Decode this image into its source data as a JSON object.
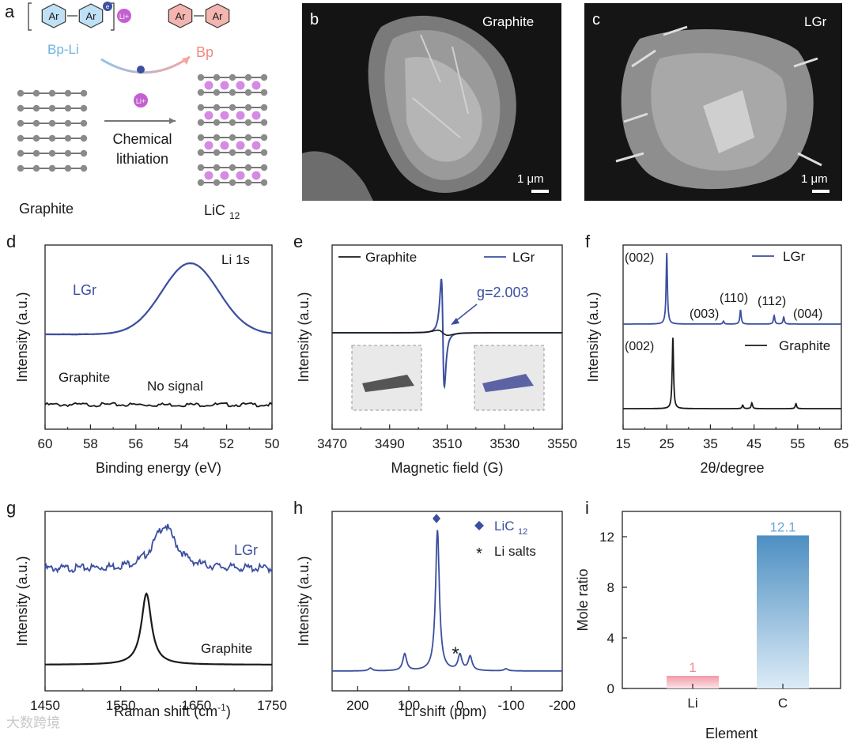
{
  "colors": {
    "blue": "#3b4fa0",
    "black": "#1a1a1a",
    "purple": "#c45fd0",
    "grayball": "#8a8a8a",
    "pinkbar": "#f2aeb6",
    "bluebar": "#5b9bc9",
    "arrowblue": "#8fc3e8",
    "arrowpink": "#f4a6a0"
  },
  "panels": {
    "a": {
      "letter": "a",
      "ar1": "Ar",
      "ar2": "Ar",
      "ar3": "Ar",
      "ar4": "Ar",
      "li_plus": "Li+",
      "e_minus": "e",
      "bpli": "Bp-Li",
      "bp": "Bp",
      "chem1": "Chemical",
      "chem2": "lithiation",
      "graphite": "Graphite",
      "lic": "LiC",
      "lic_sub": "12"
    },
    "b": {
      "letter": "b",
      "label": "Graphite",
      "scale": "1 μm"
    },
    "c": {
      "letter": "c",
      "label": "LGr",
      "scale": "1 μm"
    }
  },
  "chart_data": [
    {
      "id": "d",
      "letter": "d",
      "type": "line",
      "title": "",
      "xlabel": "Binding energy (eV)",
      "ylabel": "Intensity (a.u.)",
      "xlim": [
        60,
        50
      ],
      "xticks": [
        "60",
        "58",
        "56",
        "54",
        "52",
        "50"
      ],
      "annotations": {
        "top_right": "Li 1s",
        "lgr": "LGr",
        "graphite": "Graphite",
        "nosignal": "No signal"
      },
      "series": [
        {
          "name": "LGr",
          "peak_center_eV": 53.6,
          "fwhm_eV": 2.1,
          "baseline": 0,
          "height": 1
        },
        {
          "name": "Graphite",
          "flat": true
        }
      ]
    },
    {
      "id": "e",
      "letter": "e",
      "type": "line",
      "xlabel": "Magnetic field (G)",
      "ylabel": "Intensity (a.u.)",
      "xlim": [
        3470,
        3550
      ],
      "xticks": [
        "3470",
        "3490",
        "3510",
        "3530",
        "3550"
      ],
      "legend": [
        "Graphite",
        "LGr"
      ],
      "annotation": "g=2.003",
      "resonance_G": 3508.5
    },
    {
      "id": "f",
      "letter": "f",
      "type": "line",
      "xlabel": "2θ/degree",
      "ylabel": "Intensity (a.u.)",
      "xlim": [
        15,
        65
      ],
      "xticks": [
        "15",
        "25",
        "35",
        "45",
        "55",
        "65"
      ],
      "legend": [
        "LGr",
        "Graphite"
      ],
      "lgr_peaks": [
        {
          "label": "(002)",
          "x": 25.0,
          "h": 1.0
        },
        {
          "label": "(003)",
          "x": 38.0,
          "h": 0.04
        },
        {
          "label": "(110)",
          "x": 41.9,
          "h": 0.2
        },
        {
          "label": "(112)",
          "x": 49.6,
          "h": 0.12
        },
        {
          "label": "(004)",
          "x": 51.8,
          "h": 0.1
        }
      ],
      "graphite_peaks": [
        {
          "label": "(002)",
          "x": 26.4,
          "h": 1.0
        },
        {
          "label": "",
          "x": 42.4,
          "h": 0.05
        },
        {
          "label": "",
          "x": 44.5,
          "h": 0.08
        },
        {
          "label": "",
          "x": 54.6,
          "h": 0.07
        }
      ]
    },
    {
      "id": "g",
      "letter": "g",
      "type": "line",
      "xlabel": "Raman shift (cm",
      "xlabel_sup": "-1",
      "xlabel_end": ")",
      "ylabel": "Intensity (a.u.)",
      "xlim": [
        1450,
        1750
      ],
      "xticks": [
        "1450",
        "1550",
        "1650",
        "1750"
      ],
      "labels": [
        "LGr",
        "Graphite"
      ],
      "lgr_peak_cm": 1608,
      "graphite_peak_cm": 1584
    },
    {
      "id": "h",
      "letter": "h",
      "type": "line",
      "xlabel_pre": "7",
      "xlabel": "Li shift (ppm)",
      "ylabel": "Intensity (a.u.)",
      "xlim": [
        250,
        -200
      ],
      "xticks": [
        "200",
        "100",
        "0",
        "-100",
        "-200"
      ],
      "legend": [
        {
          "marker": "◆",
          "text": "LiC",
          "sub": "12"
        },
        {
          "marker": "*",
          "text": "Li salts"
        }
      ],
      "peaks": [
        {
          "x": 44,
          "h": 1.0
        },
        {
          "x": 108,
          "h": 0.12
        },
        {
          "x": 0,
          "h": 0.11
        },
        {
          "x": -20,
          "h": 0.1
        },
        {
          "x": 175,
          "h": 0.02
        },
        {
          "x": -90,
          "h": 0.015
        }
      ]
    },
    {
      "id": "i",
      "letter": "i",
      "type": "bar",
      "xlabel": "Element",
      "ylabel": "Mole ratio",
      "categories": [
        "Li",
        "C"
      ],
      "values": [
        1,
        12.1
      ],
      "value_labels": [
        "1",
        "12.1"
      ],
      "ylim": [
        0,
        14
      ],
      "yticks": [
        "0",
        "4",
        "8",
        "12"
      ]
    }
  ],
  "watermark": "大数跨境"
}
